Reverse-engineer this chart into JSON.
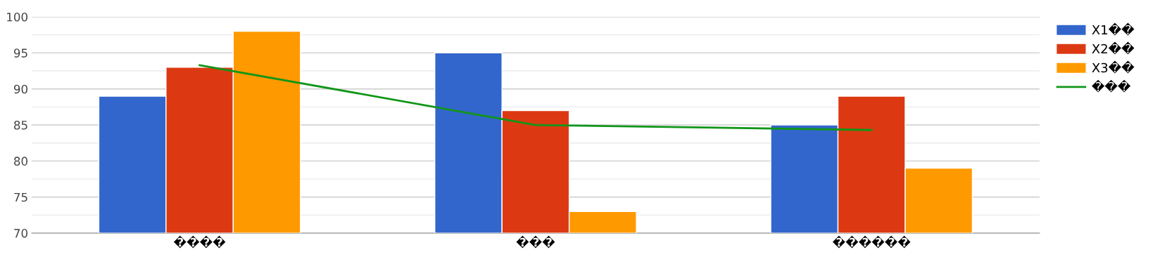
{
  "chart_data": {
    "type": "bar",
    "categories": [
      "����",
      "���",
      "������"
    ],
    "series": [
      {
        "name": "X1��",
        "color": "#3366cc",
        "values": [
          89,
          95,
          85
        ]
      },
      {
        "name": "X2��",
        "color": "#dc3912",
        "values": [
          93,
          87,
          89
        ]
      },
      {
        "name": "X3��",
        "color": "#ff9900",
        "values": [
          98,
          73,
          79
        ]
      },
      {
        "name": "���",
        "color": "#109618",
        "type": "line",
        "values": [
          93.3,
          85.0,
          84.3
        ]
      }
    ],
    "ylim": [
      70,
      100
    ],
    "yticks": [
      70,
      {
        "value": 72.5,
        "label": null
      },
      75,
      {
        "value": 77.5,
        "label": null
      },
      80,
      {
        "value": 82.5,
        "label": null
      },
      85,
      {
        "value": 87.5,
        "label": null
      },
      90,
      {
        "value": 92.5,
        "label": null
      },
      95,
      {
        "value": 97.5,
        "label": null
      },
      100
    ],
    "grid": "y",
    "legend": "right"
  }
}
